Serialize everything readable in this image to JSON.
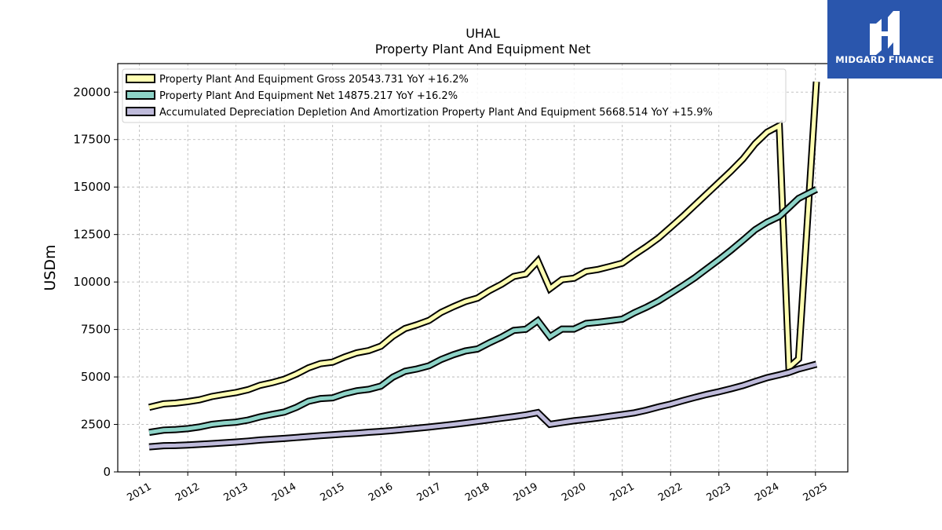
{
  "chart_data": {
    "type": "line",
    "title": "UHAL",
    "subtitle": "Property Plant And Equipment Net",
    "ylabel": "USDm",
    "xlabel": "",
    "ylim": [
      0,
      21500
    ],
    "xlim": [
      2010.55,
      2025.67
    ],
    "y_ticks": [
      0,
      2500,
      5000,
      7500,
      10000,
      12500,
      15000,
      17500,
      20000
    ],
    "y_tick_labels": [
      "0",
      "2500",
      "5000",
      "7500",
      "10000",
      "12500",
      "15000",
      "17500",
      "20000"
    ],
    "x_ticks": [
      2011,
      2012,
      2013,
      2014,
      2015,
      2016,
      2017,
      2018,
      2019,
      2020,
      2021,
      2022,
      2023,
      2024,
      2025
    ],
    "x_tick_labels": [
      "2011",
      "2012",
      "2013",
      "2014",
      "2015",
      "2016",
      "2017",
      "2018",
      "2019",
      "2020",
      "2021",
      "2022",
      "2023",
      "2024",
      "2025"
    ],
    "grid": true,
    "legend_position": "top-left",
    "x": [
      2011.2,
      2011.5,
      2011.75,
      2012.0,
      2012.25,
      2012.5,
      2012.75,
      2013.0,
      2013.25,
      2013.5,
      2013.75,
      2014.0,
      2014.25,
      2014.5,
      2014.75,
      2015.0,
      2015.25,
      2015.5,
      2015.75,
      2016.0,
      2016.25,
      2016.5,
      2016.75,
      2017.0,
      2017.25,
      2017.5,
      2017.75,
      2018.0,
      2018.25,
      2018.5,
      2018.75,
      2019.0,
      2019.25,
      2019.5,
      2019.75,
      2020.0,
      2020.25,
      2020.5,
      2020.75,
      2021.0,
      2021.25,
      2021.5,
      2021.75,
      2022.0,
      2022.25,
      2022.5,
      2022.75,
      2023.0,
      2023.25,
      2023.5,
      2023.75,
      2024.0,
      2024.25,
      2024.45,
      2024.65,
      2025.02
    ],
    "series": [
      {
        "name": "Property Plant And Equipment Gross  20543.731 YoY +16.2%",
        "color": "#ffffb3",
        "values": [
          3400,
          3580,
          3620,
          3700,
          3800,
          3970,
          4080,
          4180,
          4330,
          4560,
          4700,
          4880,
          5150,
          5480,
          5700,
          5780,
          6050,
          6270,
          6390,
          6620,
          7150,
          7550,
          7750,
          7980,
          8400,
          8700,
          8970,
          9150,
          9550,
          9880,
          10290,
          10420,
          11100,
          9650,
          10120,
          10200,
          10560,
          10660,
          10820,
          10990,
          11440,
          11860,
          12320,
          12880,
          13440,
          14040,
          14640,
          15240,
          15840,
          16480,
          17280,
          17890,
          18230,
          5500,
          5950,
          20543.731
        ]
      },
      {
        "name": "Property Plant And Equipment Net  14875.217 YoY +16.2%",
        "color": "#8dd3c7",
        "values": [
          2080,
          2200,
          2230,
          2280,
          2370,
          2500,
          2570,
          2620,
          2730,
          2900,
          3030,
          3150,
          3400,
          3720,
          3860,
          3900,
          4120,
          4270,
          4350,
          4520,
          4990,
          5300,
          5420,
          5590,
          5920,
          6170,
          6370,
          6470,
          6800,
          7100,
          7450,
          7510,
          7960,
          7120,
          7520,
          7520,
          7820,
          7880,
          7960,
          8040,
          8380,
          8670,
          9000,
          9400,
          9800,
          10220,
          10700,
          11170,
          11670,
          12200,
          12750,
          13150,
          13450,
          13920,
          14400,
          14875.217
        ]
      },
      {
        "name": "Accumulated Depreciation Depletion And Amortization Property Plant And Equipment  5668.514 YoY +15.9%",
        "color": "#bebada",
        "values": [
          1320,
          1380,
          1390,
          1420,
          1450,
          1490,
          1530,
          1570,
          1620,
          1680,
          1720,
          1760,
          1810,
          1860,
          1910,
          1950,
          2000,
          2040,
          2090,
          2130,
          2180,
          2240,
          2300,
          2360,
          2430,
          2500,
          2580,
          2660,
          2740,
          2830,
          2910,
          3000,
          3120,
          2500,
          2600,
          2690,
          2760,
          2840,
          2930,
          3020,
          3110,
          3250,
          3420,
          3570,
          3750,
          3920,
          4080,
          4220,
          4380,
          4550,
          4760,
          4960,
          5110,
          5240,
          5420,
          5668.514
        ]
      }
    ]
  },
  "logo": {
    "text": "MIDGARD FINANCE",
    "color": "#2a56ad"
  }
}
